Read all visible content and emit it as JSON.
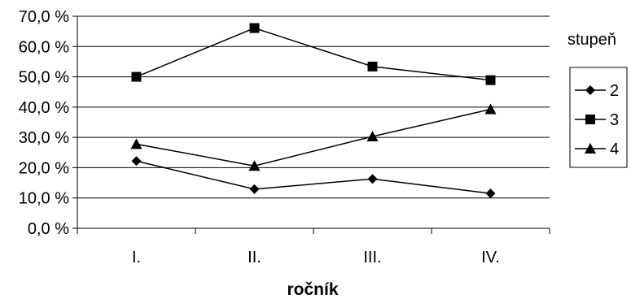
{
  "chart_data": {
    "type": "line",
    "title": "",
    "xlabel": "ročník",
    "ylabel": "",
    "categories": [
      "I.",
      "II.",
      "III.",
      "IV."
    ],
    "y_ticks": [
      "0,0 %",
      "10,0 %",
      "20,0 %",
      "30,0 %",
      "40,0 %",
      "50,0 %",
      "60,0 %",
      "70,0 %"
    ],
    "ylim": [
      0,
      70
    ],
    "y_unit": "%",
    "grid": true,
    "legend": {
      "title": "stupeň",
      "placement": "right"
    },
    "series": [
      {
        "name": "2",
        "marker": "diamond",
        "values": [
          22.2,
          12.9,
          16.3,
          11.5
        ]
      },
      {
        "name": "3",
        "marker": "square",
        "values": [
          50.0,
          66.1,
          53.4,
          48.9
        ]
      },
      {
        "name": "4",
        "marker": "triangle",
        "values": [
          27.8,
          20.6,
          30.3,
          39.3
        ]
      }
    ]
  }
}
